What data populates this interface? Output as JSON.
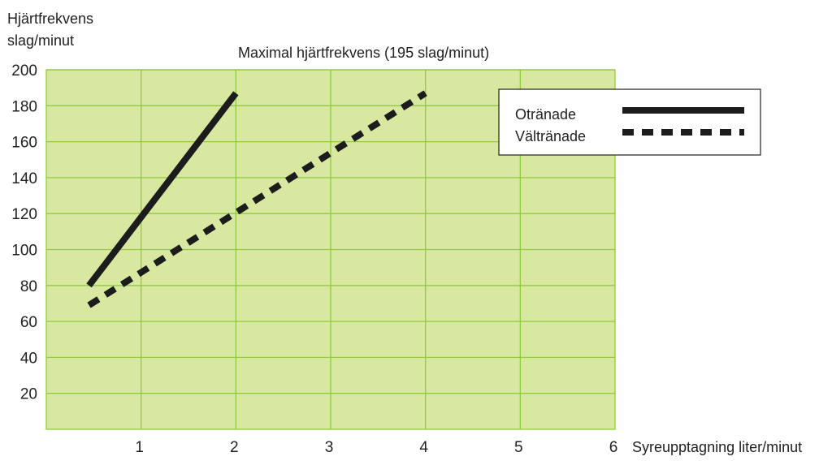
{
  "chart_data": {
    "type": "line",
    "title": "Maximal hjärtfrekvens (195 slag/minut)",
    "ylabel": [
      "Hjärtfrekvens",
      "slag/minut"
    ],
    "xlabel": "Syreupptagning liter/minut",
    "xlim": [
      0,
      6
    ],
    "ylim": [
      0,
      200
    ],
    "x_ticks": [
      1,
      2,
      3,
      4,
      5,
      6
    ],
    "y_ticks": [
      20,
      40,
      60,
      80,
      100,
      120,
      140,
      160,
      180,
      200
    ],
    "grid": true,
    "legend_position": "top-right",
    "colors": {
      "plot_bg": "#d9e8a0",
      "grid": "#8fcb3c",
      "line": "#1c1c1c"
    },
    "series": [
      {
        "name": "Otränade",
        "style": "solid",
        "x": [
          0.45,
          2.0
        ],
        "y": [
          80,
          187
        ]
      },
      {
        "name": "Vältränade",
        "style": "dashed",
        "x": [
          0.45,
          4.0
        ],
        "y": [
          69,
          187
        ]
      }
    ]
  }
}
